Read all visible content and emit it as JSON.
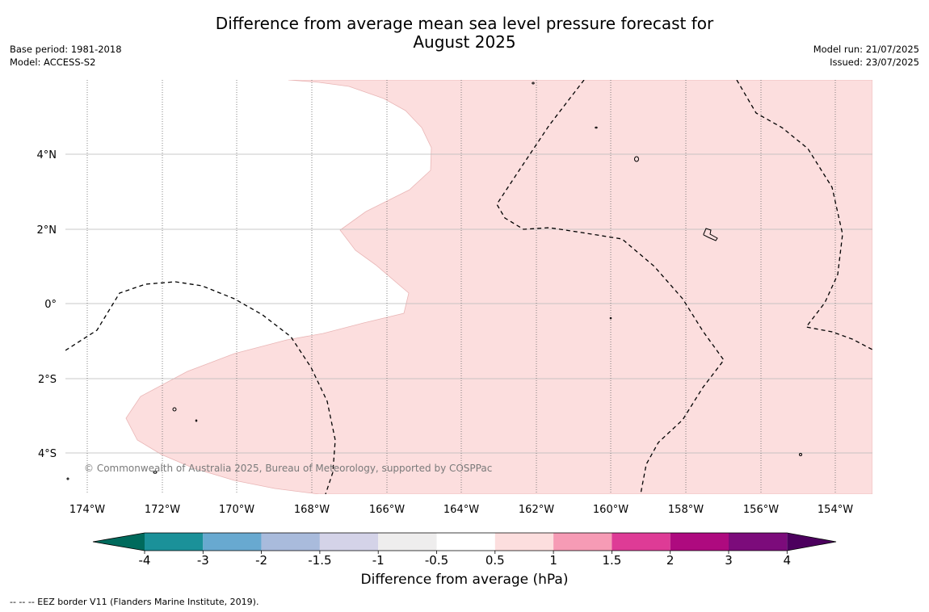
{
  "title_line1": "Difference from average mean sea level pressure forecast for",
  "title_line2": "August 2025",
  "base_period": "Base period: 1981-2018",
  "model": "Model: ACCESS-S2",
  "model_run": "Model run: 21/07/2025",
  "issued": "Issued: 23/07/2025",
  "copyright": "© Commonwealth of Australia 2025, Bureau of Meteorology, supported by COSPPac",
  "footnote": "--  --  -- EEZ border V11 (Flanders Marine Institute, 2019).",
  "lat_labels": [
    "4°N",
    "2°N",
    "0°",
    "2°S",
    "4°S"
  ],
  "lon_labels": [
    "174°W",
    "172°W",
    "170°W",
    "168°W",
    "166°W",
    "164°W",
    "162°W",
    "160°W",
    "158°W",
    "156°W",
    "154°W"
  ],
  "colorbar": {
    "title": "Difference from average (hPa)",
    "ticks": [
      "-4",
      "-3",
      "-2",
      "-1.5",
      "-1",
      "-0.5",
      "0.5",
      "1",
      "1.5",
      "2",
      "3",
      "4"
    ],
    "colors": [
      "#006a5c",
      "#1b9199",
      "#68a9d0",
      "#a9bbdc",
      "#d4d3e8",
      "#eeeded",
      "#ffffff",
      "#fcdede",
      "#f69bb5",
      "#de3b96",
      "#ae0a7f",
      "#7c0b7b",
      "#4c005e"
    ]
  },
  "chart_data": {
    "type": "map",
    "variable": "Difference from average mean sea level pressure",
    "units": "hPa",
    "region_lat": [
      "4°S",
      "4°N"
    ],
    "region_lon": [
      "174°W",
      "154°W"
    ],
    "filled_category": "0.5 to 1",
    "filled_color": "#fcdede",
    "unfilled_category": "-0.5 to 0.5",
    "eez_border_style": "dashed"
  }
}
